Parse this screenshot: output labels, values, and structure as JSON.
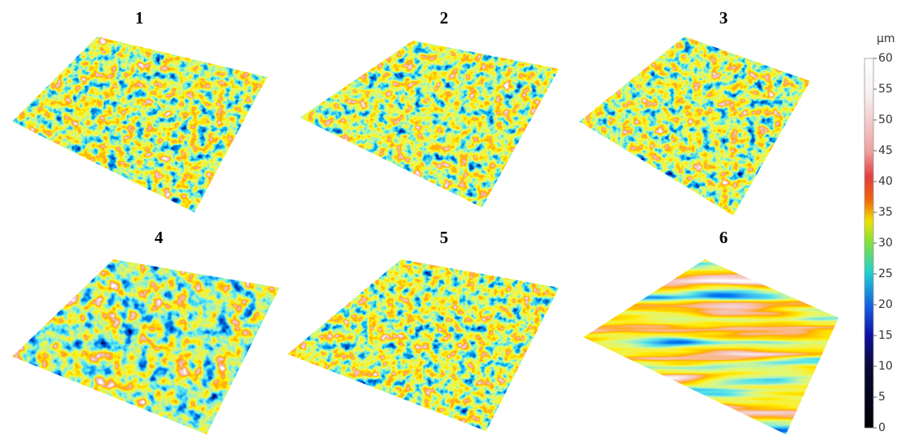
{
  "panels": [
    {
      "label": "1"
    },
    {
      "label": "2"
    },
    {
      "label": "3"
    },
    {
      "label": "4"
    },
    {
      "label": "5"
    },
    {
      "label": "6"
    }
  ],
  "colorbar": {
    "unit": "μm",
    "range": [
      0,
      60
    ],
    "ticks": [
      0,
      5,
      10,
      15,
      20,
      25,
      30,
      35,
      40,
      45,
      50,
      55,
      60
    ]
  }
}
